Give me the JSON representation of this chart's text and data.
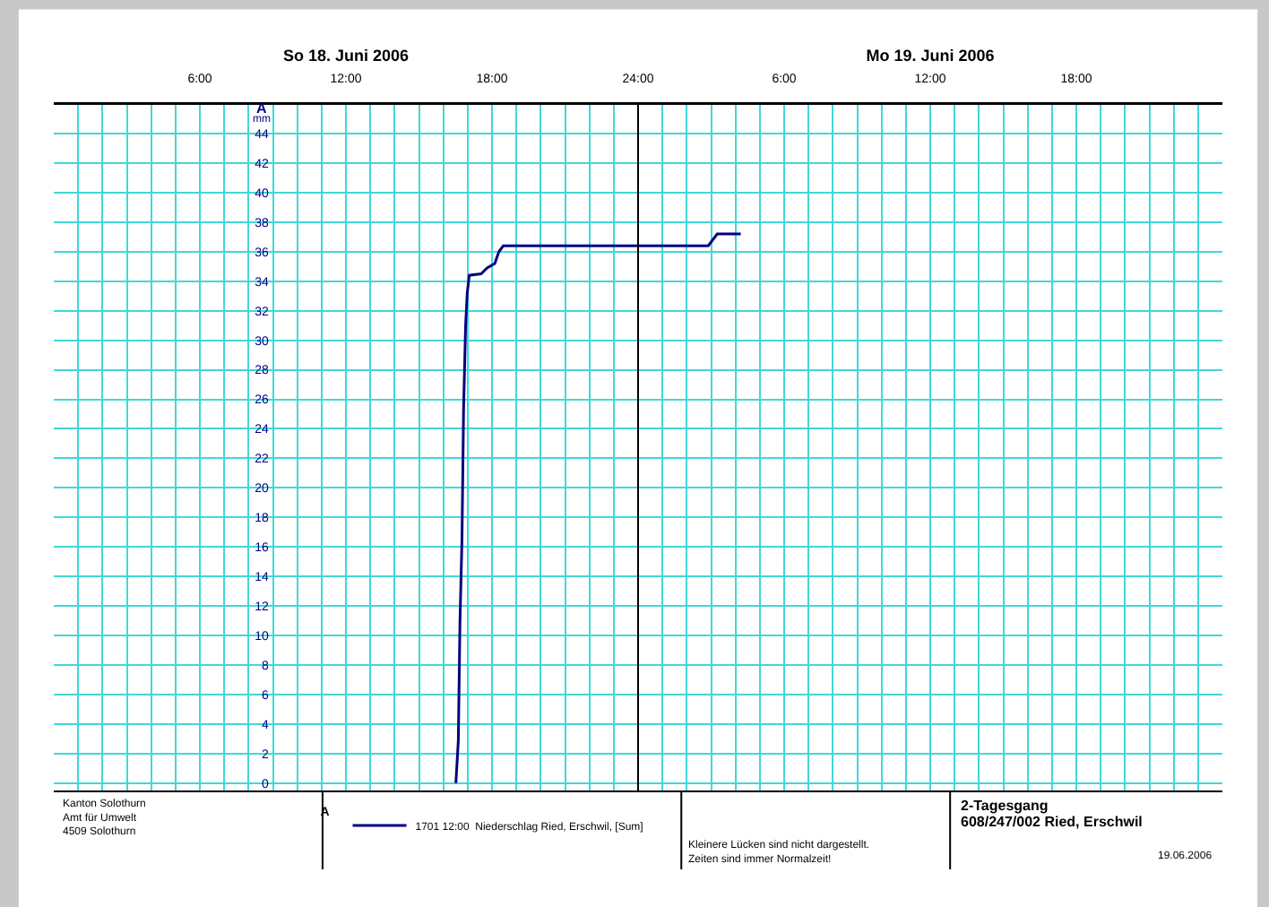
{
  "chart_data": {
    "type": "line",
    "title": "2-Tagesgang",
    "subtitle": "608/247/002 Ried, Erschwil",
    "ylabel": "mm",
    "legend_title": "A",
    "series": [
      {
        "name": "1701 12:00  Niederschlag Ried, Erschwil, [Sum]",
        "color": "#000080",
        "x": [
          "2006-06-18T16:31",
          "2006-06-18T16:37",
          "2006-06-18T16:41",
          "2006-06-18T16:46",
          "2006-06-18T16:50",
          "2006-06-18T16:55",
          "2006-06-18T16:59",
          "2006-06-18T17:04",
          "2006-06-18T17:33",
          "2006-06-18T17:48",
          "2006-06-18T18:07",
          "2006-06-18T18:17",
          "2006-06-18T18:28",
          "2006-06-19T02:53",
          "2006-06-19T03:15",
          "2006-06-19T04:13"
        ],
        "values": [
          0,
          2.9,
          10.9,
          16.5,
          25.4,
          31,
          33.2,
          34.4,
          34.5,
          34.9,
          35.2,
          36,
          36.4,
          36.4,
          37.2,
          37.2
        ]
      }
    ],
    "xlim": [
      "2006-06-18T00:00",
      "2006-06-20T00:00"
    ],
    "xticks": [
      {
        "value": "2006-06-18T01:00",
        "label": null
      },
      {
        "value": "2006-06-18T02:00",
        "label": null
      },
      {
        "value": "2006-06-18T03:00",
        "label": null
      },
      {
        "value": "2006-06-18T04:00",
        "label": null
      },
      {
        "value": "2006-06-18T05:00",
        "label": null
      },
      {
        "value": "2006-06-18T06:00",
        "label": "6:00"
      },
      {
        "value": "2006-06-18T07:00",
        "label": null
      },
      {
        "value": "2006-06-18T08:00",
        "label": null
      },
      {
        "value": "2006-06-18T09:00",
        "label": null
      },
      {
        "value": "2006-06-18T10:00",
        "label": null
      },
      {
        "value": "2006-06-18T11:00",
        "label": null
      },
      {
        "value": "2006-06-18T12:00",
        "label": "12:00"
      },
      {
        "value": "2006-06-18T13:00",
        "label": null
      },
      {
        "value": "2006-06-18T14:00",
        "label": null
      },
      {
        "value": "2006-06-18T15:00",
        "label": null
      },
      {
        "value": "2006-06-18T16:00",
        "label": null
      },
      {
        "value": "2006-06-18T17:00",
        "label": null
      },
      {
        "value": "2006-06-18T18:00",
        "label": "18:00"
      },
      {
        "value": "2006-06-18T19:00",
        "label": null
      },
      {
        "value": "2006-06-18T20:00",
        "label": null
      },
      {
        "value": "2006-06-18T21:00",
        "label": null
      },
      {
        "value": "2006-06-18T22:00",
        "label": null
      },
      {
        "value": "2006-06-18T23:00",
        "label": null
      },
      {
        "value": "2006-06-19T00:00",
        "label": "24:00"
      },
      {
        "value": "2006-06-19T01:00",
        "label": null
      },
      {
        "value": "2006-06-19T02:00",
        "label": null
      },
      {
        "value": "2006-06-19T03:00",
        "label": null
      },
      {
        "value": "2006-06-19T04:00",
        "label": null
      },
      {
        "value": "2006-06-19T05:00",
        "label": null
      },
      {
        "value": "2006-06-19T06:00",
        "label": "6:00"
      },
      {
        "value": "2006-06-19T07:00",
        "label": null
      },
      {
        "value": "2006-06-19T08:00",
        "label": null
      },
      {
        "value": "2006-06-19T09:00",
        "label": null
      },
      {
        "value": "2006-06-19T10:00",
        "label": null
      },
      {
        "value": "2006-06-19T11:00",
        "label": null
      },
      {
        "value": "2006-06-19T12:00",
        "label": "12:00"
      },
      {
        "value": "2006-06-19T13:00",
        "label": null
      },
      {
        "value": "2006-06-19T14:00",
        "label": null
      },
      {
        "value": "2006-06-19T15:00",
        "label": null
      },
      {
        "value": "2006-06-19T16:00",
        "label": null
      },
      {
        "value": "2006-06-19T17:00",
        "label": null
      },
      {
        "value": "2006-06-19T18:00",
        "label": "18:00"
      },
      {
        "value": "2006-06-19T19:00",
        "label": null
      },
      {
        "value": "2006-06-19T20:00",
        "label": null
      },
      {
        "value": "2006-06-19T21:00",
        "label": null
      },
      {
        "value": "2006-06-19T22:00",
        "label": null
      },
      {
        "value": "2006-06-19T23:00",
        "label": null
      }
    ],
    "x2lim": [
      "2006-06-18T00:00",
      "2006-06-20T00:00"
    ],
    "x2ticks": [
      {
        "value": "2006-06-18T12:00",
        "label": "So 18. Juni 2006"
      },
      {
        "value": "2006-06-19T12:00",
        "label": "Mo 19. Juni 2006"
      }
    ],
    "ylim": [
      -0.5,
      46
    ],
    "yticks": [
      0,
      2,
      4,
      6,
      8,
      10,
      12,
      14,
      16,
      18,
      20,
      22,
      24,
      26,
      28,
      30,
      32,
      34,
      36,
      38,
      40,
      42,
      44
    ],
    "ref_lines": [
      {
        "axis": "x",
        "value": "2006-06-19T00:00",
        "label": null,
        "color": "#000000"
      }
    ],
    "grid": true,
    "legend": "bottom",
    "annotations": [
      "A",
      "Kanton Solothurn\nAmt für Umwelt\n4509 Solothurn",
      "Kleinere Lücken sind nicht dargestellt.\nZeiten sind immer Normalzeit!",
      "19.06.2006"
    ]
  }
}
